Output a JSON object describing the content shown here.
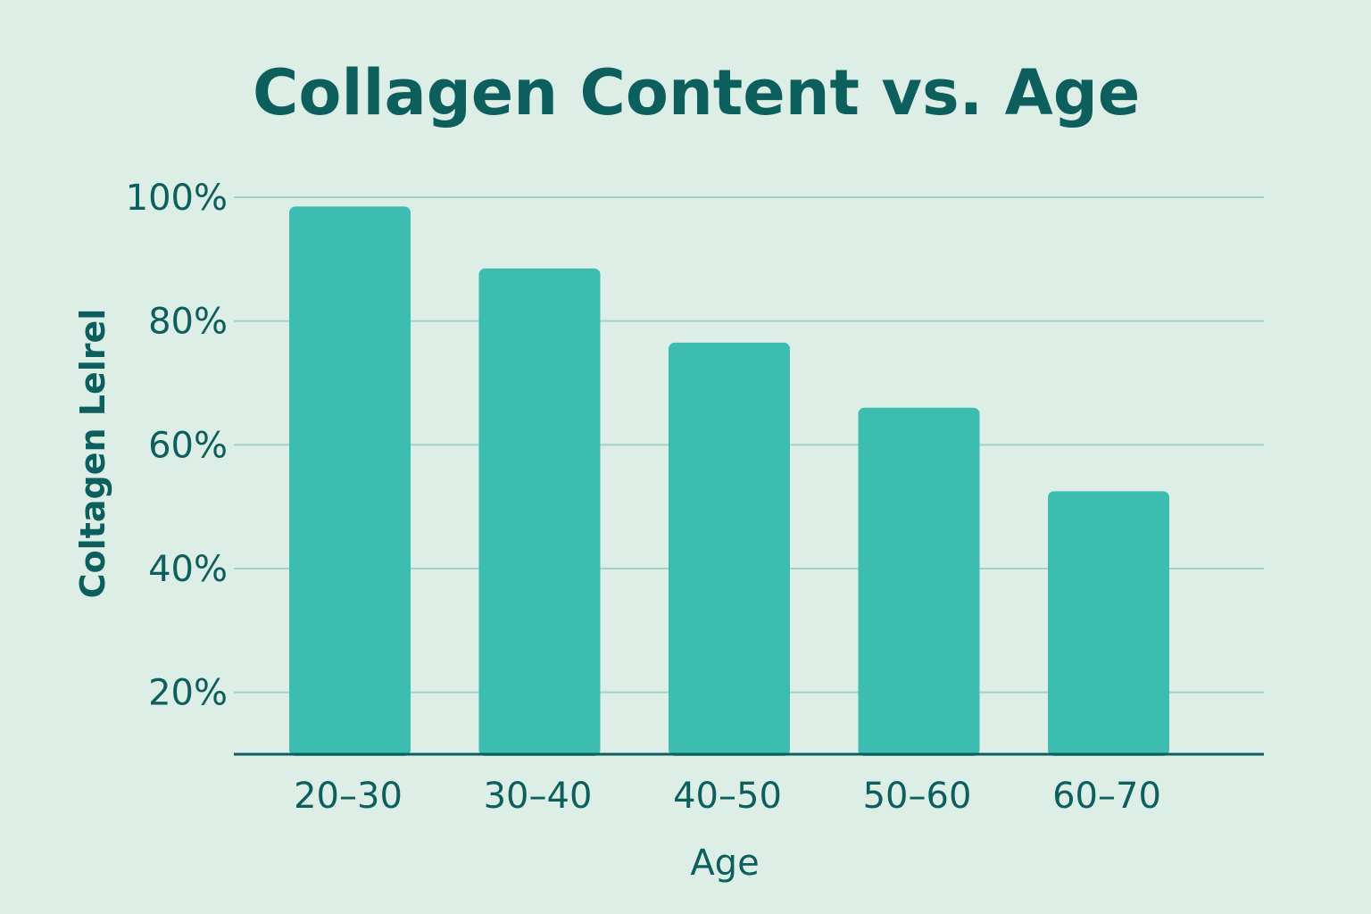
{
  "chart_data": {
    "type": "bar",
    "title": "Collagen Content vs. Age",
    "xlabel": "Age",
    "ylabel": "Coltagen Lelrel",
    "categories": [
      "20–30",
      "30–40",
      "40–50",
      "50–60",
      "60–70"
    ],
    "values": [
      98.5,
      88.5,
      76.5,
      66,
      52.5
    ],
    "ylim": [
      10,
      100
    ],
    "yticks": [
      20,
      40,
      60,
      80,
      100
    ],
    "ytick_labels": [
      "20%",
      "40%",
      "60%",
      "80%",
      "100%"
    ],
    "grid": true,
    "colors": {
      "bar": "#3dbcb0",
      "text": "#0c5f5c",
      "grid": "#9fd3c8",
      "background": "#ddeee7"
    }
  }
}
